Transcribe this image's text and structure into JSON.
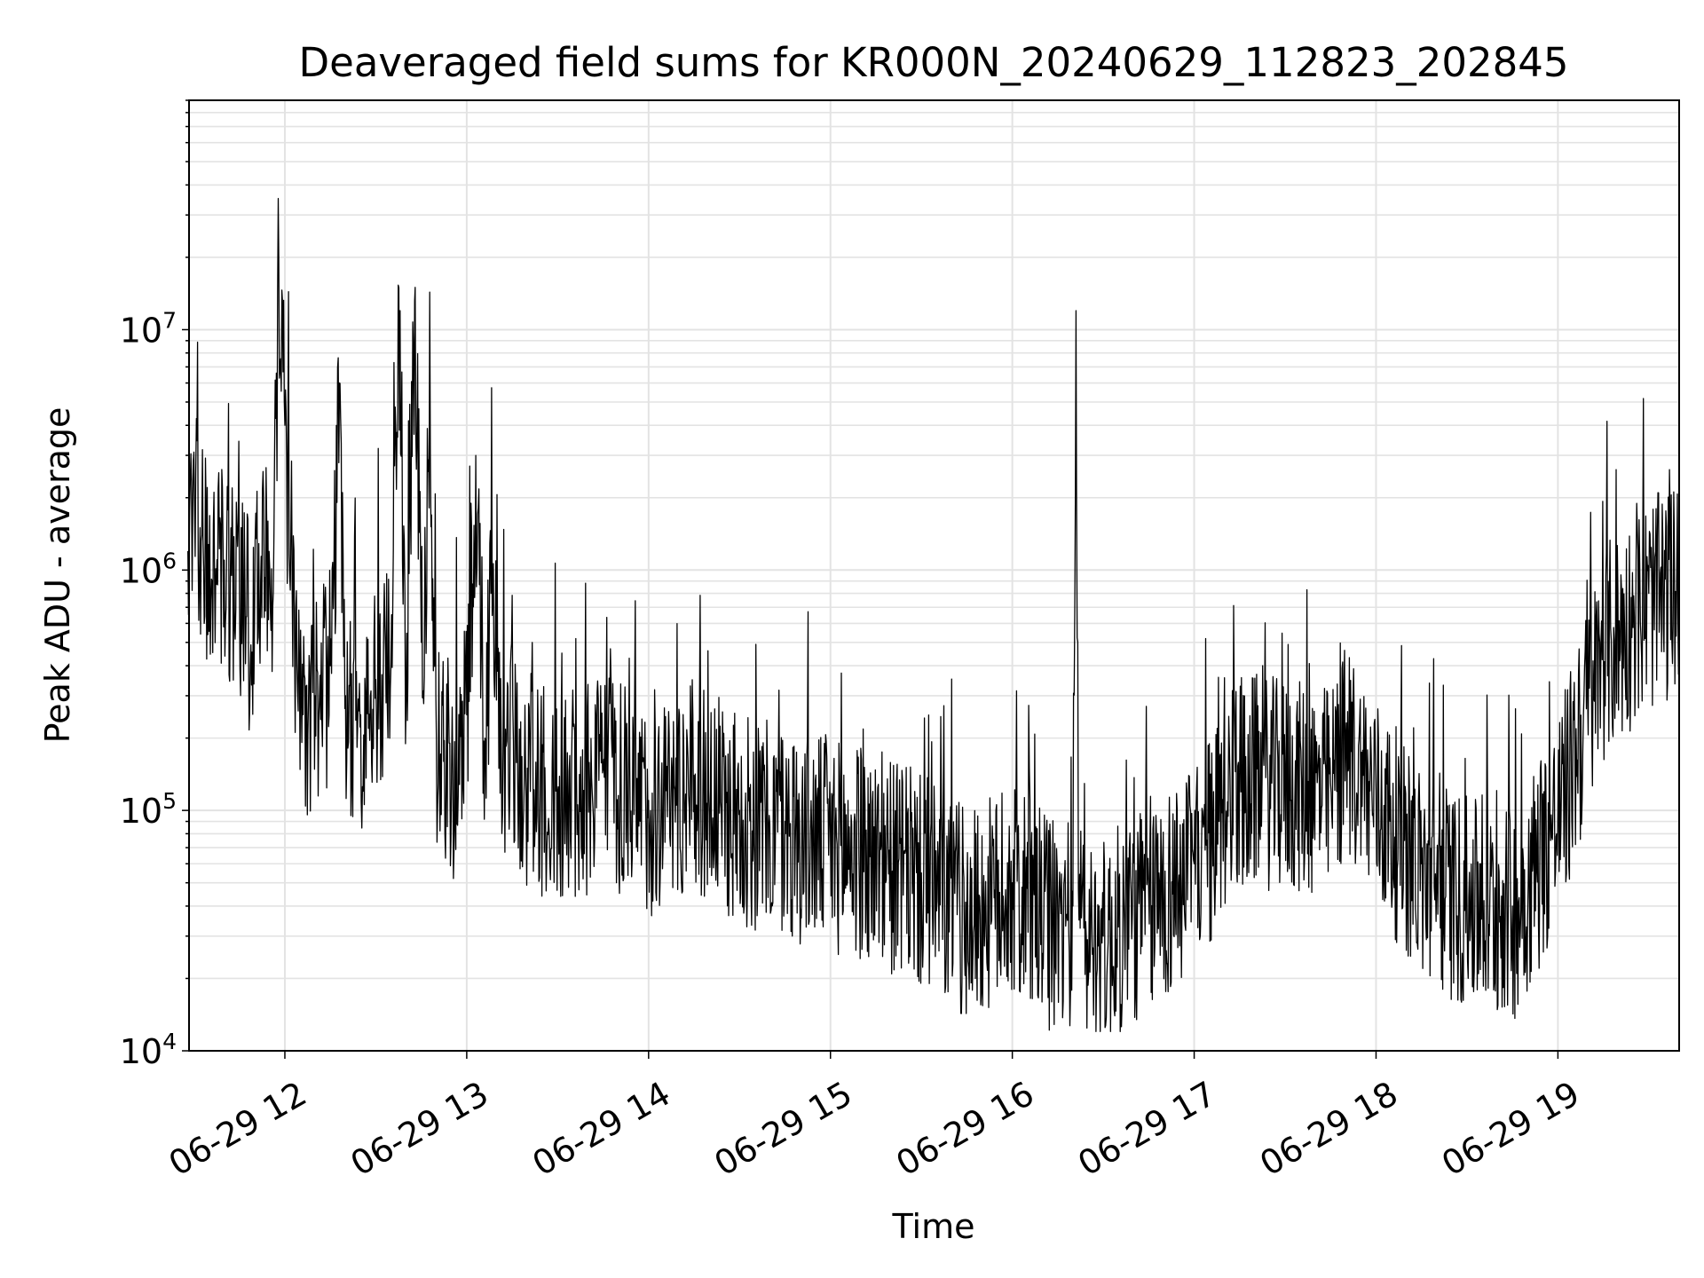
{
  "chart_data": {
    "type": "line",
    "title": "Deaveraged field sums for KR000N_20240629_112823_202845",
    "xlabel": "Time",
    "ylabel": "Peak ADU - average",
    "y_scale": "log",
    "xlim": [
      "06-29 11:28:23",
      "06-29 19:40:00"
    ],
    "ylim": [
      10000,
      90000000
    ],
    "grid": true,
    "x_ticks": [
      {
        "time": "06-29 12:00",
        "label": "06-29 12"
      },
      {
        "time": "06-29 13:00",
        "label": "06-29 13"
      },
      {
        "time": "06-29 14:00",
        "label": "06-29 14"
      },
      {
        "time": "06-29 15:00",
        "label": "06-29 15"
      },
      {
        "time": "06-29 16:00",
        "label": "06-29 16"
      },
      {
        "time": "06-29 17:00",
        "label": "06-29 17"
      },
      {
        "time": "06-29 18:00",
        "label": "06-29 18"
      },
      {
        "time": "06-29 19:00",
        "label": "06-29 19"
      }
    ],
    "y_ticks": [
      {
        "value": 10000,
        "base": "10",
        "exp": "4"
      },
      {
        "value": 100000,
        "base": "10",
        "exp": "5"
      },
      {
        "value": 1000000,
        "base": "10",
        "exp": "6"
      },
      {
        "value": 10000000,
        "base": "10",
        "exp": "7"
      }
    ],
    "line_color": "#000000",
    "series": [
      {
        "x": [
          "06-29 11:28",
          "06-29 11:32",
          "06-29 11:36",
          "06-29 11:40",
          "06-29 11:45",
          "06-29 11:50",
          "06-29 11:53",
          "06-29 11:56",
          "06-29 11:58",
          "06-29 12:00",
          "06-29 12:02",
          "06-29 12:04",
          "06-29 12:06",
          "06-29 12:10",
          "06-29 12:15",
          "06-29 12:18",
          "06-29 12:20",
          "06-29 12:25",
          "06-29 12:30",
          "06-29 12:35",
          "06-29 12:38",
          "06-29 12:40",
          "06-29 12:43",
          "06-29 12:45",
          "06-29 12:48",
          "06-29 12:50",
          "06-29 12:55",
          "06-29 13:00",
          "06-29 13:03",
          "06-29 13:06",
          "06-29 13:08",
          "06-29 13:12",
          "06-29 13:20",
          "06-29 13:30",
          "06-29 13:45",
          "06-29 14:00",
          "06-29 14:15",
          "06-29 14:30",
          "06-29 14:45",
          "06-29 15:00",
          "06-29 15:15",
          "06-29 15:30",
          "06-29 15:45",
          "06-29 16:00",
          "06-29 16:15",
          "06-29 16:20",
          "06-29 16:21",
          "06-29 16:22",
          "06-29 16:30",
          "06-29 16:45",
          "06-29 17:00",
          "06-29 17:15",
          "06-29 17:30",
          "06-29 17:45",
          "06-29 17:50",
          "06-29 18:00",
          "06-29 18:15",
          "06-29 18:30",
          "06-29 18:45",
          "06-29 19:00",
          "06-29 19:15",
          "06-29 19:30",
          "06-29 19:40"
        ],
        "y": [
          1200000,
          1500000,
          900000,
          1100000,
          800000,
          600000,
          2000000,
          700000,
          20000000,
          4000000,
          1500000,
          400000,
          250000,
          300000,
          400000,
          6000000,
          300000,
          250000,
          350000,
          400000,
          12000000,
          300000,
          15000000,
          500000,
          3000000,
          200000,
          150000,
          250000,
          3000000,
          200000,
          800000,
          200000,
          150000,
          120000,
          150000,
          110000,
          140000,
          100000,
          90000,
          80000,
          70000,
          55000,
          40000,
          50000,
          35000,
          40000,
          12000000,
          35000,
          30000,
          45000,
          60000,
          150000,
          140000,
          130000,
          200000,
          120000,
          60000,
          45000,
          40000,
          100000,
          500000,
          800000,
          900000
        ]
      }
    ]
  }
}
